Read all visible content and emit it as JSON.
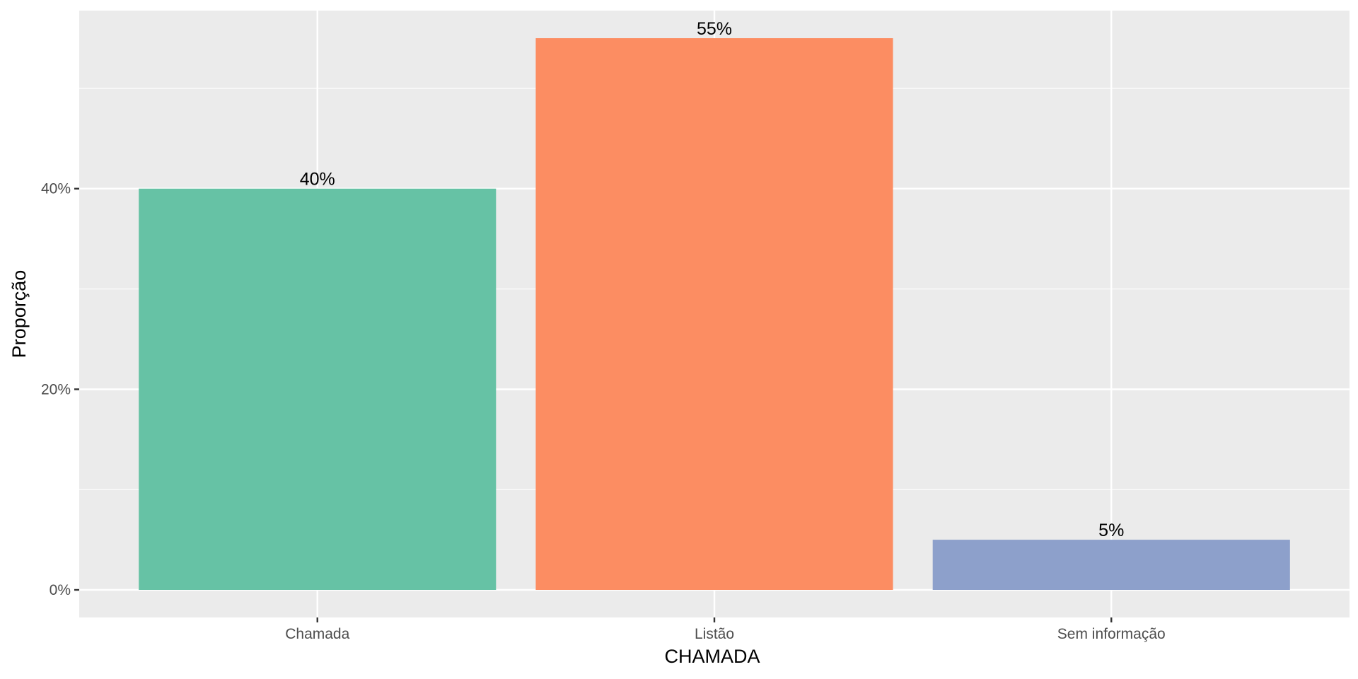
{
  "chart_data": {
    "type": "bar",
    "categories": [
      "Chamada",
      "Listão",
      "Sem informação"
    ],
    "values": [
      40,
      55,
      5
    ],
    "data_labels": [
      "40%",
      "55%",
      "5%"
    ],
    "colors": [
      "#66c2a5",
      "#fc8d62",
      "#8da0cb"
    ],
    "xlabel": "CHAMADA",
    "ylabel": "Proporção",
    "ylim": [
      -2.75,
      57.75
    ],
    "y_ticks": [
      0,
      20,
      40
    ],
    "y_tick_labels": [
      "0%",
      "20%",
      "40%"
    ],
    "y_minor_ticks": [
      10,
      30,
      50
    ],
    "grid": true,
    "legend": "none",
    "panel_background": "#ebebeb",
    "grid_color": "#ffffff"
  }
}
